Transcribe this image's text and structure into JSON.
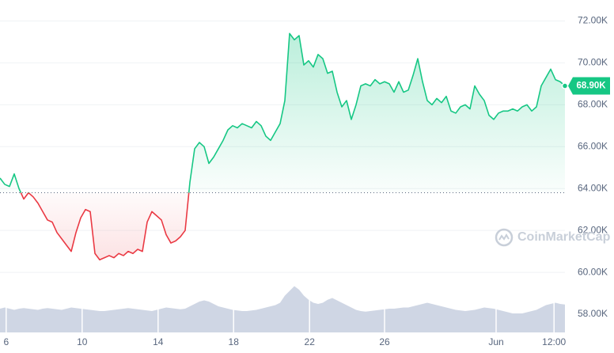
{
  "chart_data": {
    "type": "line",
    "watermark": "CoinMarketCap",
    "baseline": 63800,
    "last_label": "68.90K",
    "up_color": "#16c784",
    "down_color": "#ea3943",
    "volume_color": "#cfd6e4",
    "xlim": [
      0,
      119
    ],
    "xticks": [
      {
        "value": 1.3,
        "label": "6"
      },
      {
        "value": 17.3,
        "label": "10"
      },
      {
        "value": 33.3,
        "label": "14"
      },
      {
        "value": 49.2,
        "label": "18"
      },
      {
        "value": 65.2,
        "label": "22"
      },
      {
        "value": 81,
        "label": "26"
      },
      {
        "value": 104.5,
        "label": "Jun"
      },
      {
        "value": 116.7,
        "label": "12:00"
      }
    ],
    "ylim": [
      56000,
      73000
    ],
    "yticks": [
      {
        "value": 58000,
        "label": "58.00K"
      },
      {
        "value": 60000,
        "label": "60.00K"
      },
      {
        "value": 62000,
        "label": "62.00K"
      },
      {
        "value": 64000,
        "label": "64.00K"
      },
      {
        "value": 66000,
        "label": "66.00K"
      },
      {
        "value": 68000,
        "label": "68.00K"
      },
      {
        "value": 70000,
        "label": "70.00K"
      },
      {
        "value": 72000,
        "label": "72.00K"
      }
    ],
    "grid": true,
    "values": [
      64500,
      64200,
      64100,
      64700,
      64000,
      63500,
      63800,
      63600,
      63300,
      62900,
      62500,
      62400,
      61900,
      61600,
      61300,
      61000,
      61900,
      62600,
      63000,
      62900,
      60900,
      60600,
      60700,
      60800,
      60700,
      60900,
      60800,
      61000,
      60900,
      61100,
      61000,
      62400,
      62900,
      62700,
      62500,
      61800,
      61400,
      61500,
      61700,
      62000,
      64300,
      65900,
      66200,
      66000,
      65200,
      65500,
      65900,
      66300,
      66800,
      67000,
      66900,
      67100,
      67000,
      66900,
      67200,
      67000,
      66500,
      66300,
      66700,
      67100,
      68200,
      71400,
      71100,
      71300,
      69900,
      70100,
      69800,
      70400,
      70200,
      69500,
      69600,
      68600,
      67900,
      68200,
      67300,
      68000,
      68900,
      69000,
      68900,
      69200,
      69000,
      69100,
      69000,
      68600,
      69100,
      68600,
      68700,
      69400,
      70200,
      69100,
      68200,
      68000,
      68300,
      68100,
      68400,
      67700,
      67600,
      67900,
      68000,
      67800,
      68900,
      68500,
      68200,
      67500,
      67300,
      67600,
      67700,
      67700,
      67800,
      67700,
      67900,
      68000,
      67700,
      67900,
      68900,
      69300,
      69700,
      69200,
      69100,
      68900
    ],
    "volume_lim": [
      0,
      100
    ],
    "volume": [
      40,
      42,
      40,
      38,
      40,
      41,
      40,
      39,
      38,
      40,
      41,
      40,
      39,
      38,
      40,
      42,
      41,
      40,
      39,
      38,
      37,
      36,
      36,
      37,
      38,
      39,
      40,
      41,
      40,
      39,
      38,
      37,
      36,
      38,
      40,
      42,
      41,
      40,
      39,
      40,
      44,
      48,
      52,
      54,
      52,
      48,
      44,
      42,
      40,
      38,
      37,
      36,
      36,
      37,
      38,
      40,
      42,
      44,
      46,
      50,
      62,
      70,
      78,
      72,
      62,
      55,
      50,
      48,
      50,
      55,
      58,
      54,
      50,
      46,
      42,
      38,
      36,
      35,
      36,
      37,
      38,
      39,
      40,
      40,
      41,
      42,
      42,
      44,
      46,
      48,
      50,
      48,
      46,
      44,
      42,
      40,
      38,
      37,
      36,
      37,
      38,
      40,
      42,
      41,
      40,
      38,
      36,
      34,
      32,
      32,
      32,
      34,
      36,
      38,
      42,
      46,
      48,
      50,
      48,
      47
    ]
  }
}
